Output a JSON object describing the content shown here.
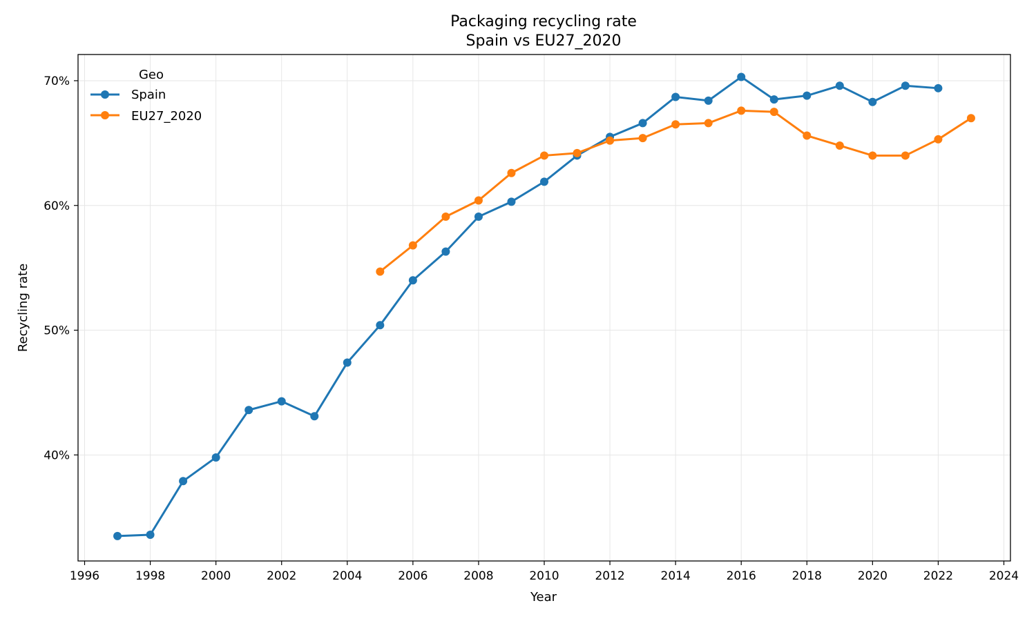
{
  "chart_data": {
    "type": "line",
    "title": "Packaging recycling rate",
    "subtitle": "Spain vs EU27_2020",
    "xlabel": "Year",
    "ylabel": "Recycling rate",
    "xlim": [
      1995.8,
      2024.2
    ],
    "ylim": [
      31.5,
      72.1
    ],
    "x_ticks": [
      1996,
      1998,
      2000,
      2002,
      2004,
      2006,
      2008,
      2010,
      2012,
      2014,
      2016,
      2018,
      2020,
      2022,
      2024
    ],
    "y_ticks": [
      40,
      50,
      60,
      70
    ],
    "y_tick_labels": [
      "40%",
      "50%",
      "60%",
      "70%"
    ],
    "grid": true,
    "legend": {
      "title": "Geo",
      "placement": "top-left"
    },
    "series": [
      {
        "name": "Spain",
        "color": "#1f77b4",
        "points": [
          [
            1997,
            33.5
          ],
          [
            1998,
            33.6
          ],
          [
            1999,
            37.9
          ],
          [
            2000,
            39.8
          ],
          [
            2001,
            43.6
          ],
          [
            2002,
            44.3
          ],
          [
            2003,
            43.1
          ],
          [
            2004,
            47.4
          ],
          [
            2005,
            50.4
          ],
          [
            2006,
            54.0
          ],
          [
            2007,
            56.3
          ],
          [
            2008,
            59.1
          ],
          [
            2009,
            60.3
          ],
          [
            2010,
            61.9
          ],
          [
            2011,
            64.0
          ],
          [
            2012,
            65.5
          ],
          [
            2013,
            66.6
          ],
          [
            2014,
            68.7
          ],
          [
            2015,
            68.4
          ],
          [
            2016,
            70.3
          ],
          [
            2017,
            68.5
          ],
          [
            2018,
            68.8
          ],
          [
            2019,
            69.6
          ],
          [
            2020,
            68.3
          ],
          [
            2021,
            69.6
          ],
          [
            2022,
            69.4
          ]
        ]
      },
      {
        "name": "EU27_2020",
        "color": "#ff7f0e",
        "points": [
          [
            2005,
            54.7
          ],
          [
            2006,
            56.8
          ],
          [
            2007,
            59.1
          ],
          [
            2008,
            60.4
          ],
          [
            2009,
            62.6
          ],
          [
            2010,
            64.0
          ],
          [
            2011,
            64.2
          ],
          [
            2012,
            65.2
          ],
          [
            2013,
            65.4
          ],
          [
            2014,
            66.5
          ],
          [
            2015,
            66.6
          ],
          [
            2016,
            67.6
          ],
          [
            2017,
            67.5
          ],
          [
            2018,
            65.6
          ],
          [
            2019,
            64.8
          ],
          [
            2020,
            64.0
          ],
          [
            2021,
            64.0
          ],
          [
            2022,
            65.3
          ],
          [
            2023,
            67.0
          ]
        ]
      }
    ]
  }
}
